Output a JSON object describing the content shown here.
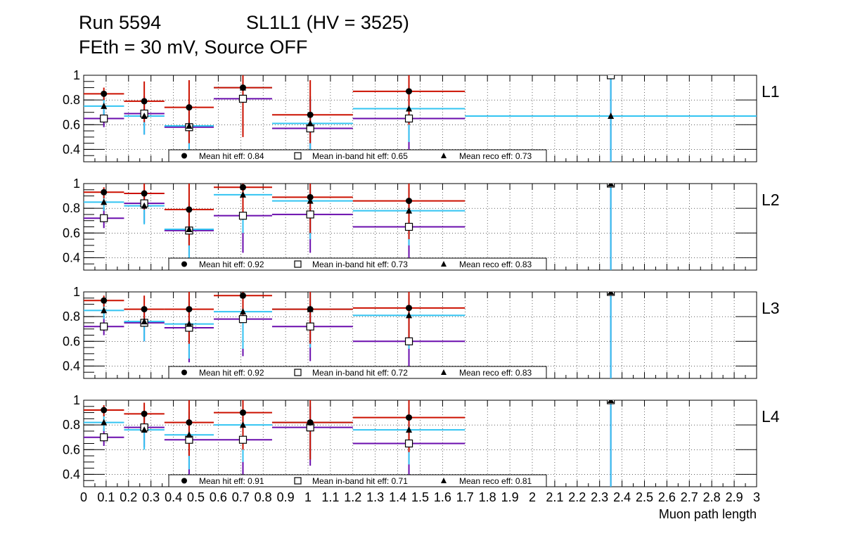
{
  "header": {
    "run": "Run 5594",
    "chamber": "SL1L1 (HV = 3525)",
    "conditions": "FEth = 30 mV, Source OFF"
  },
  "colors": {
    "hit": "#cc1100",
    "inband": "#6a0dad",
    "reco": "#33c4f2",
    "marker": "#000000",
    "grid": "#000000"
  },
  "chart_data": {
    "type": "scatter",
    "xlabel": "Muon path length",
    "xlim": [
      0,
      3
    ],
    "ylim": [
      0.3,
      1.0
    ],
    "x_tick_labels": [
      "0",
      "0.1",
      "0.2",
      "0.3",
      "0.4",
      "0.5",
      "0.6",
      "0.7",
      "0.8",
      "0.9",
      "1",
      "1.1",
      "1.2",
      "1.3",
      "1.4",
      "1.5",
      "1.6",
      "1.7",
      "1.8",
      "1.9",
      "2",
      "2.1",
      "2.2",
      "2.3",
      "2.4",
      "2.5",
      "2.6",
      "2.7",
      "2.8",
      "2.9",
      "3"
    ],
    "y_tick_labels": [
      "0.4",
      "0.6",
      "0.8",
      "1"
    ],
    "grid": true,
    "series_keys": [
      "hit",
      "inband",
      "reco"
    ],
    "panels": [
      {
        "name": "L1",
        "legend": {
          "hit": "Mean hit  eff: 0.84",
          "inband": "Mean in-band hit eff: 0.65",
          "reco": "Mean reco eff: 0.73"
        },
        "hit": [
          {
            "x": 0.09,
            "y": 0.85,
            "xl": 0.0,
            "xh": 0.18,
            "yl": 0.8,
            "yh": 0.9
          },
          {
            "x": 0.27,
            "y": 0.79,
            "xl": 0.18,
            "xh": 0.36,
            "yl": 0.62,
            "yh": 0.95
          },
          {
            "x": 0.47,
            "y": 0.74,
            "xl": 0.36,
            "xh": 0.58,
            "yl": 0.45,
            "yh": 0.96
          },
          {
            "x": 0.71,
            "y": 0.9,
            "xl": 0.58,
            "xh": 0.84,
            "yl": 0.5,
            "yh": 1.0
          },
          {
            "x": 1.01,
            "y": 0.68,
            "xl": 0.84,
            "xh": 1.2,
            "yl": 0.45,
            "yh": 0.96
          },
          {
            "x": 1.45,
            "y": 0.87,
            "xl": 1.2,
            "xh": 1.7,
            "yl": 0.6,
            "yh": 1.0
          }
        ],
        "inband": [
          {
            "x": 0.09,
            "y": 0.65,
            "xl": 0.0,
            "xh": 0.18,
            "yl": 0.58,
            "yh": 0.72
          },
          {
            "x": 0.27,
            "y": 0.69,
            "xl": 0.18,
            "xh": 0.36,
            "yl": 0.52,
            "yh": 0.83
          },
          {
            "x": 0.47,
            "y": 0.58,
            "xl": 0.36,
            "xh": 0.58,
            "yl": 0.35,
            "yh": 0.78
          },
          {
            "x": 0.71,
            "y": 0.81,
            "xl": 0.58,
            "xh": 0.84,
            "yl": 0.52,
            "yh": 0.96
          },
          {
            "x": 1.01,
            "y": 0.57,
            "xl": 0.84,
            "xh": 1.2,
            "yl": 0.33,
            "yh": 0.8
          },
          {
            "x": 1.45,
            "y": 0.65,
            "xl": 1.2,
            "xh": 1.7,
            "yl": 0.4,
            "yh": 0.85
          },
          {
            "x": 2.35,
            "y": 1.0,
            "xl": 2.35,
            "xh": 2.35,
            "yl": 0.3,
            "yh": 1.0
          }
        ],
        "reco": [
          {
            "x": 0.09,
            "y": 0.75,
            "xl": 0.0,
            "xh": 0.18,
            "yl": 0.68,
            "yh": 0.82
          },
          {
            "x": 0.27,
            "y": 0.67,
            "xl": 0.18,
            "xh": 0.36,
            "yl": 0.52,
            "yh": 0.82
          },
          {
            "x": 0.47,
            "y": 0.59,
            "xl": 0.36,
            "xh": 0.58,
            "yl": 0.33,
            "yh": 0.8
          },
          {
            "x": 0.71,
            "y": 0.9,
            "xl": 0.58,
            "xh": 0.84,
            "yl": 0.55,
            "yh": 1.0
          },
          {
            "x": 1.01,
            "y": 0.61,
            "xl": 0.84,
            "xh": 1.2,
            "yl": 0.36,
            "yh": 0.83
          },
          {
            "x": 1.45,
            "y": 0.73,
            "xl": 1.2,
            "xh": 1.7,
            "yl": 0.46,
            "yh": 0.92
          },
          {
            "x": 2.35,
            "y": 0.67,
            "xl": 1.7,
            "xh": 3.0,
            "yl": 0.3,
            "yh": 1.0
          }
        ]
      },
      {
        "name": "L2",
        "legend": {
          "hit": "Mean hit  eff: 0.92",
          "inband": "Mean in-band hit eff: 0.73",
          "reco": "Mean reco eff: 0.83"
        },
        "hit": [
          {
            "x": 0.09,
            "y": 0.93,
            "xl": 0.0,
            "xh": 0.18,
            "yl": 0.88,
            "yh": 0.97
          },
          {
            "x": 0.27,
            "y": 0.92,
            "xl": 0.18,
            "xh": 0.36,
            "yl": 0.79,
            "yh": 1.0
          },
          {
            "x": 0.47,
            "y": 0.79,
            "xl": 0.36,
            "xh": 0.58,
            "yl": 0.5,
            "yh": 1.0
          },
          {
            "x": 0.71,
            "y": 0.97,
            "xl": 0.58,
            "xh": 0.84,
            "yl": 0.75,
            "yh": 1.0
          },
          {
            "x": 1.01,
            "y": 0.89,
            "xl": 0.84,
            "xh": 1.2,
            "yl": 0.6,
            "yh": 1.0
          },
          {
            "x": 1.45,
            "y": 0.86,
            "xl": 1.2,
            "xh": 1.7,
            "yl": 0.55,
            "yh": 1.0
          }
        ],
        "inband": [
          {
            "x": 0.09,
            "y": 0.72,
            "xl": 0.0,
            "xh": 0.18,
            "yl": 0.64,
            "yh": 0.8
          },
          {
            "x": 0.27,
            "y": 0.84,
            "xl": 0.18,
            "xh": 0.36,
            "yl": 0.68,
            "yh": 0.95
          },
          {
            "x": 0.47,
            "y": 0.62,
            "xl": 0.36,
            "xh": 0.58,
            "yl": 0.35,
            "yh": 0.84
          },
          {
            "x": 0.71,
            "y": 0.74,
            "xl": 0.58,
            "xh": 0.84,
            "yl": 0.44,
            "yh": 0.92
          },
          {
            "x": 1.01,
            "y": 0.75,
            "xl": 0.84,
            "xh": 1.2,
            "yl": 0.44,
            "yh": 0.93
          },
          {
            "x": 1.45,
            "y": 0.65,
            "xl": 1.2,
            "xh": 1.7,
            "yl": 0.38,
            "yh": 0.88
          },
          {
            "x": 2.35,
            "y": 1.0,
            "xl": 2.35,
            "xh": 2.35,
            "yl": 0.3,
            "yh": 1.0
          }
        ],
        "reco": [
          {
            "x": 0.09,
            "y": 0.85,
            "xl": 0.0,
            "xh": 0.18,
            "yl": 0.78,
            "yh": 0.91
          },
          {
            "x": 0.27,
            "y": 0.82,
            "xl": 0.18,
            "xh": 0.36,
            "yl": 0.67,
            "yh": 0.94
          },
          {
            "x": 0.47,
            "y": 0.63,
            "xl": 0.36,
            "xh": 0.58,
            "yl": 0.38,
            "yh": 0.85
          },
          {
            "x": 0.71,
            "y": 0.91,
            "xl": 0.58,
            "xh": 0.84,
            "yl": 0.6,
            "yh": 1.0
          },
          {
            "x": 1.01,
            "y": 0.86,
            "xl": 0.84,
            "xh": 1.2,
            "yl": 0.55,
            "yh": 1.0
          },
          {
            "x": 1.45,
            "y": 0.78,
            "xl": 1.2,
            "xh": 1.7,
            "yl": 0.5,
            "yh": 0.96
          },
          {
            "x": 2.35,
            "y": 1.0,
            "xl": 2.35,
            "xh": 2.35,
            "yl": 0.3,
            "yh": 1.0
          }
        ]
      },
      {
        "name": "L3",
        "legend": {
          "hit": "Mean hit  eff: 0.92",
          "inband": "Mean in-band hit eff: 0.72",
          "reco": "Mean reco eff: 0.83"
        },
        "hit": [
          {
            "x": 0.09,
            "y": 0.93,
            "xl": 0.0,
            "xh": 0.18,
            "yl": 0.88,
            "yh": 0.97
          },
          {
            "x": 0.27,
            "y": 0.86,
            "xl": 0.18,
            "xh": 0.36,
            "yl": 0.72,
            "yh": 0.97
          },
          {
            "x": 0.47,
            "y": 0.86,
            "xl": 0.36,
            "xh": 0.58,
            "yl": 0.58,
            "yh": 1.0
          },
          {
            "x": 0.71,
            "y": 0.97,
            "xl": 0.58,
            "xh": 0.84,
            "yl": 0.75,
            "yh": 1.0
          },
          {
            "x": 1.01,
            "y": 0.86,
            "xl": 0.84,
            "xh": 1.2,
            "yl": 0.58,
            "yh": 1.0
          },
          {
            "x": 1.45,
            "y": 0.87,
            "xl": 1.2,
            "xh": 1.7,
            "yl": 0.58,
            "yh": 1.0
          }
        ],
        "inband": [
          {
            "x": 0.09,
            "y": 0.72,
            "xl": 0.0,
            "xh": 0.18,
            "yl": 0.65,
            "yh": 0.79
          },
          {
            "x": 0.27,
            "y": 0.75,
            "xl": 0.18,
            "xh": 0.36,
            "yl": 0.6,
            "yh": 0.88
          },
          {
            "x": 0.47,
            "y": 0.71,
            "xl": 0.36,
            "xh": 0.58,
            "yl": 0.43,
            "yh": 0.88
          },
          {
            "x": 0.71,
            "y": 0.78,
            "xl": 0.58,
            "xh": 0.84,
            "yl": 0.48,
            "yh": 0.95
          },
          {
            "x": 1.01,
            "y": 0.72,
            "xl": 0.84,
            "xh": 1.2,
            "yl": 0.44,
            "yh": 0.9
          },
          {
            "x": 1.45,
            "y": 0.6,
            "xl": 1.2,
            "xh": 1.7,
            "yl": 0.32,
            "yh": 0.84
          },
          {
            "x": 2.35,
            "y": 1.0,
            "xl": 2.35,
            "xh": 2.35,
            "yl": 0.3,
            "yh": 1.0
          }
        ],
        "reco": [
          {
            "x": 0.09,
            "y": 0.85,
            "xl": 0.0,
            "xh": 0.18,
            "yl": 0.78,
            "yh": 0.91
          },
          {
            "x": 0.27,
            "y": 0.76,
            "xl": 0.18,
            "xh": 0.36,
            "yl": 0.6,
            "yh": 0.89
          },
          {
            "x": 0.47,
            "y": 0.74,
            "xl": 0.36,
            "xh": 0.58,
            "yl": 0.46,
            "yh": 0.92
          },
          {
            "x": 0.71,
            "y": 0.84,
            "xl": 0.58,
            "xh": 0.84,
            "yl": 0.54,
            "yh": 0.98
          },
          {
            "x": 1.01,
            "y": 0.86,
            "xl": 0.84,
            "xh": 1.2,
            "yl": 0.55,
            "yh": 1.0
          },
          {
            "x": 1.45,
            "y": 0.81,
            "xl": 1.2,
            "xh": 1.7,
            "yl": 0.54,
            "yh": 0.97
          },
          {
            "x": 2.35,
            "y": 1.0,
            "xl": 2.35,
            "xh": 2.35,
            "yl": 0.3,
            "yh": 1.0
          }
        ]
      },
      {
        "name": "L4",
        "legend": {
          "hit": "Mean hit  eff: 0.91",
          "inband": "Mean in-band hit eff: 0.71",
          "reco": "Mean reco eff: 0.81"
        },
        "hit": [
          {
            "x": 0.09,
            "y": 0.92,
            "xl": 0.0,
            "xh": 0.18,
            "yl": 0.87,
            "yh": 0.96
          },
          {
            "x": 0.27,
            "y": 0.89,
            "xl": 0.18,
            "xh": 0.36,
            "yl": 0.75,
            "yh": 0.98
          },
          {
            "x": 0.47,
            "y": 0.82,
            "xl": 0.36,
            "xh": 0.58,
            "yl": 0.55,
            "yh": 1.0
          },
          {
            "x": 0.71,
            "y": 0.9,
            "xl": 0.58,
            "xh": 0.84,
            "yl": 0.6,
            "yh": 1.0
          },
          {
            "x": 1.01,
            "y": 0.82,
            "xl": 0.84,
            "xh": 1.2,
            "yl": 0.52,
            "yh": 1.0
          },
          {
            "x": 1.45,
            "y": 0.86,
            "xl": 1.2,
            "xh": 1.7,
            "yl": 0.58,
            "yh": 1.0
          }
        ],
        "inband": [
          {
            "x": 0.09,
            "y": 0.7,
            "xl": 0.0,
            "xh": 0.18,
            "yl": 0.63,
            "yh": 0.77
          },
          {
            "x": 0.27,
            "y": 0.78,
            "xl": 0.18,
            "xh": 0.36,
            "yl": 0.62,
            "yh": 0.9
          },
          {
            "x": 0.47,
            "y": 0.68,
            "xl": 0.36,
            "xh": 0.58,
            "yl": 0.4,
            "yh": 0.87
          },
          {
            "x": 0.71,
            "y": 0.68,
            "xl": 0.58,
            "xh": 0.84,
            "yl": 0.38,
            "yh": 0.88
          },
          {
            "x": 1.01,
            "y": 0.78,
            "xl": 0.84,
            "xh": 1.2,
            "yl": 0.47,
            "yh": 0.95
          },
          {
            "x": 1.45,
            "y": 0.65,
            "xl": 1.2,
            "xh": 1.7,
            "yl": 0.36,
            "yh": 0.88
          },
          {
            "x": 2.35,
            "y": 1.0,
            "xl": 2.35,
            "xh": 2.35,
            "yl": 0.3,
            "yh": 1.0
          }
        ],
        "reco": [
          {
            "x": 0.09,
            "y": 0.82,
            "xl": 0.0,
            "xh": 0.18,
            "yl": 0.75,
            "yh": 0.88
          },
          {
            "x": 0.27,
            "y": 0.76,
            "xl": 0.18,
            "xh": 0.36,
            "yl": 0.6,
            "yh": 0.89
          },
          {
            "x": 0.47,
            "y": 0.72,
            "xl": 0.36,
            "xh": 0.58,
            "yl": 0.44,
            "yh": 0.91
          },
          {
            "x": 0.71,
            "y": 0.8,
            "xl": 0.58,
            "xh": 0.84,
            "yl": 0.5,
            "yh": 0.97
          },
          {
            "x": 1.01,
            "y": 0.82,
            "xl": 0.84,
            "xh": 1.2,
            "yl": 0.52,
            "yh": 0.98
          },
          {
            "x": 1.45,
            "y": 0.76,
            "xl": 1.2,
            "xh": 1.7,
            "yl": 0.48,
            "yh": 0.94
          },
          {
            "x": 2.35,
            "y": 1.0,
            "xl": 2.35,
            "xh": 2.35,
            "yl": 0.3,
            "yh": 1.0
          }
        ]
      }
    ]
  }
}
